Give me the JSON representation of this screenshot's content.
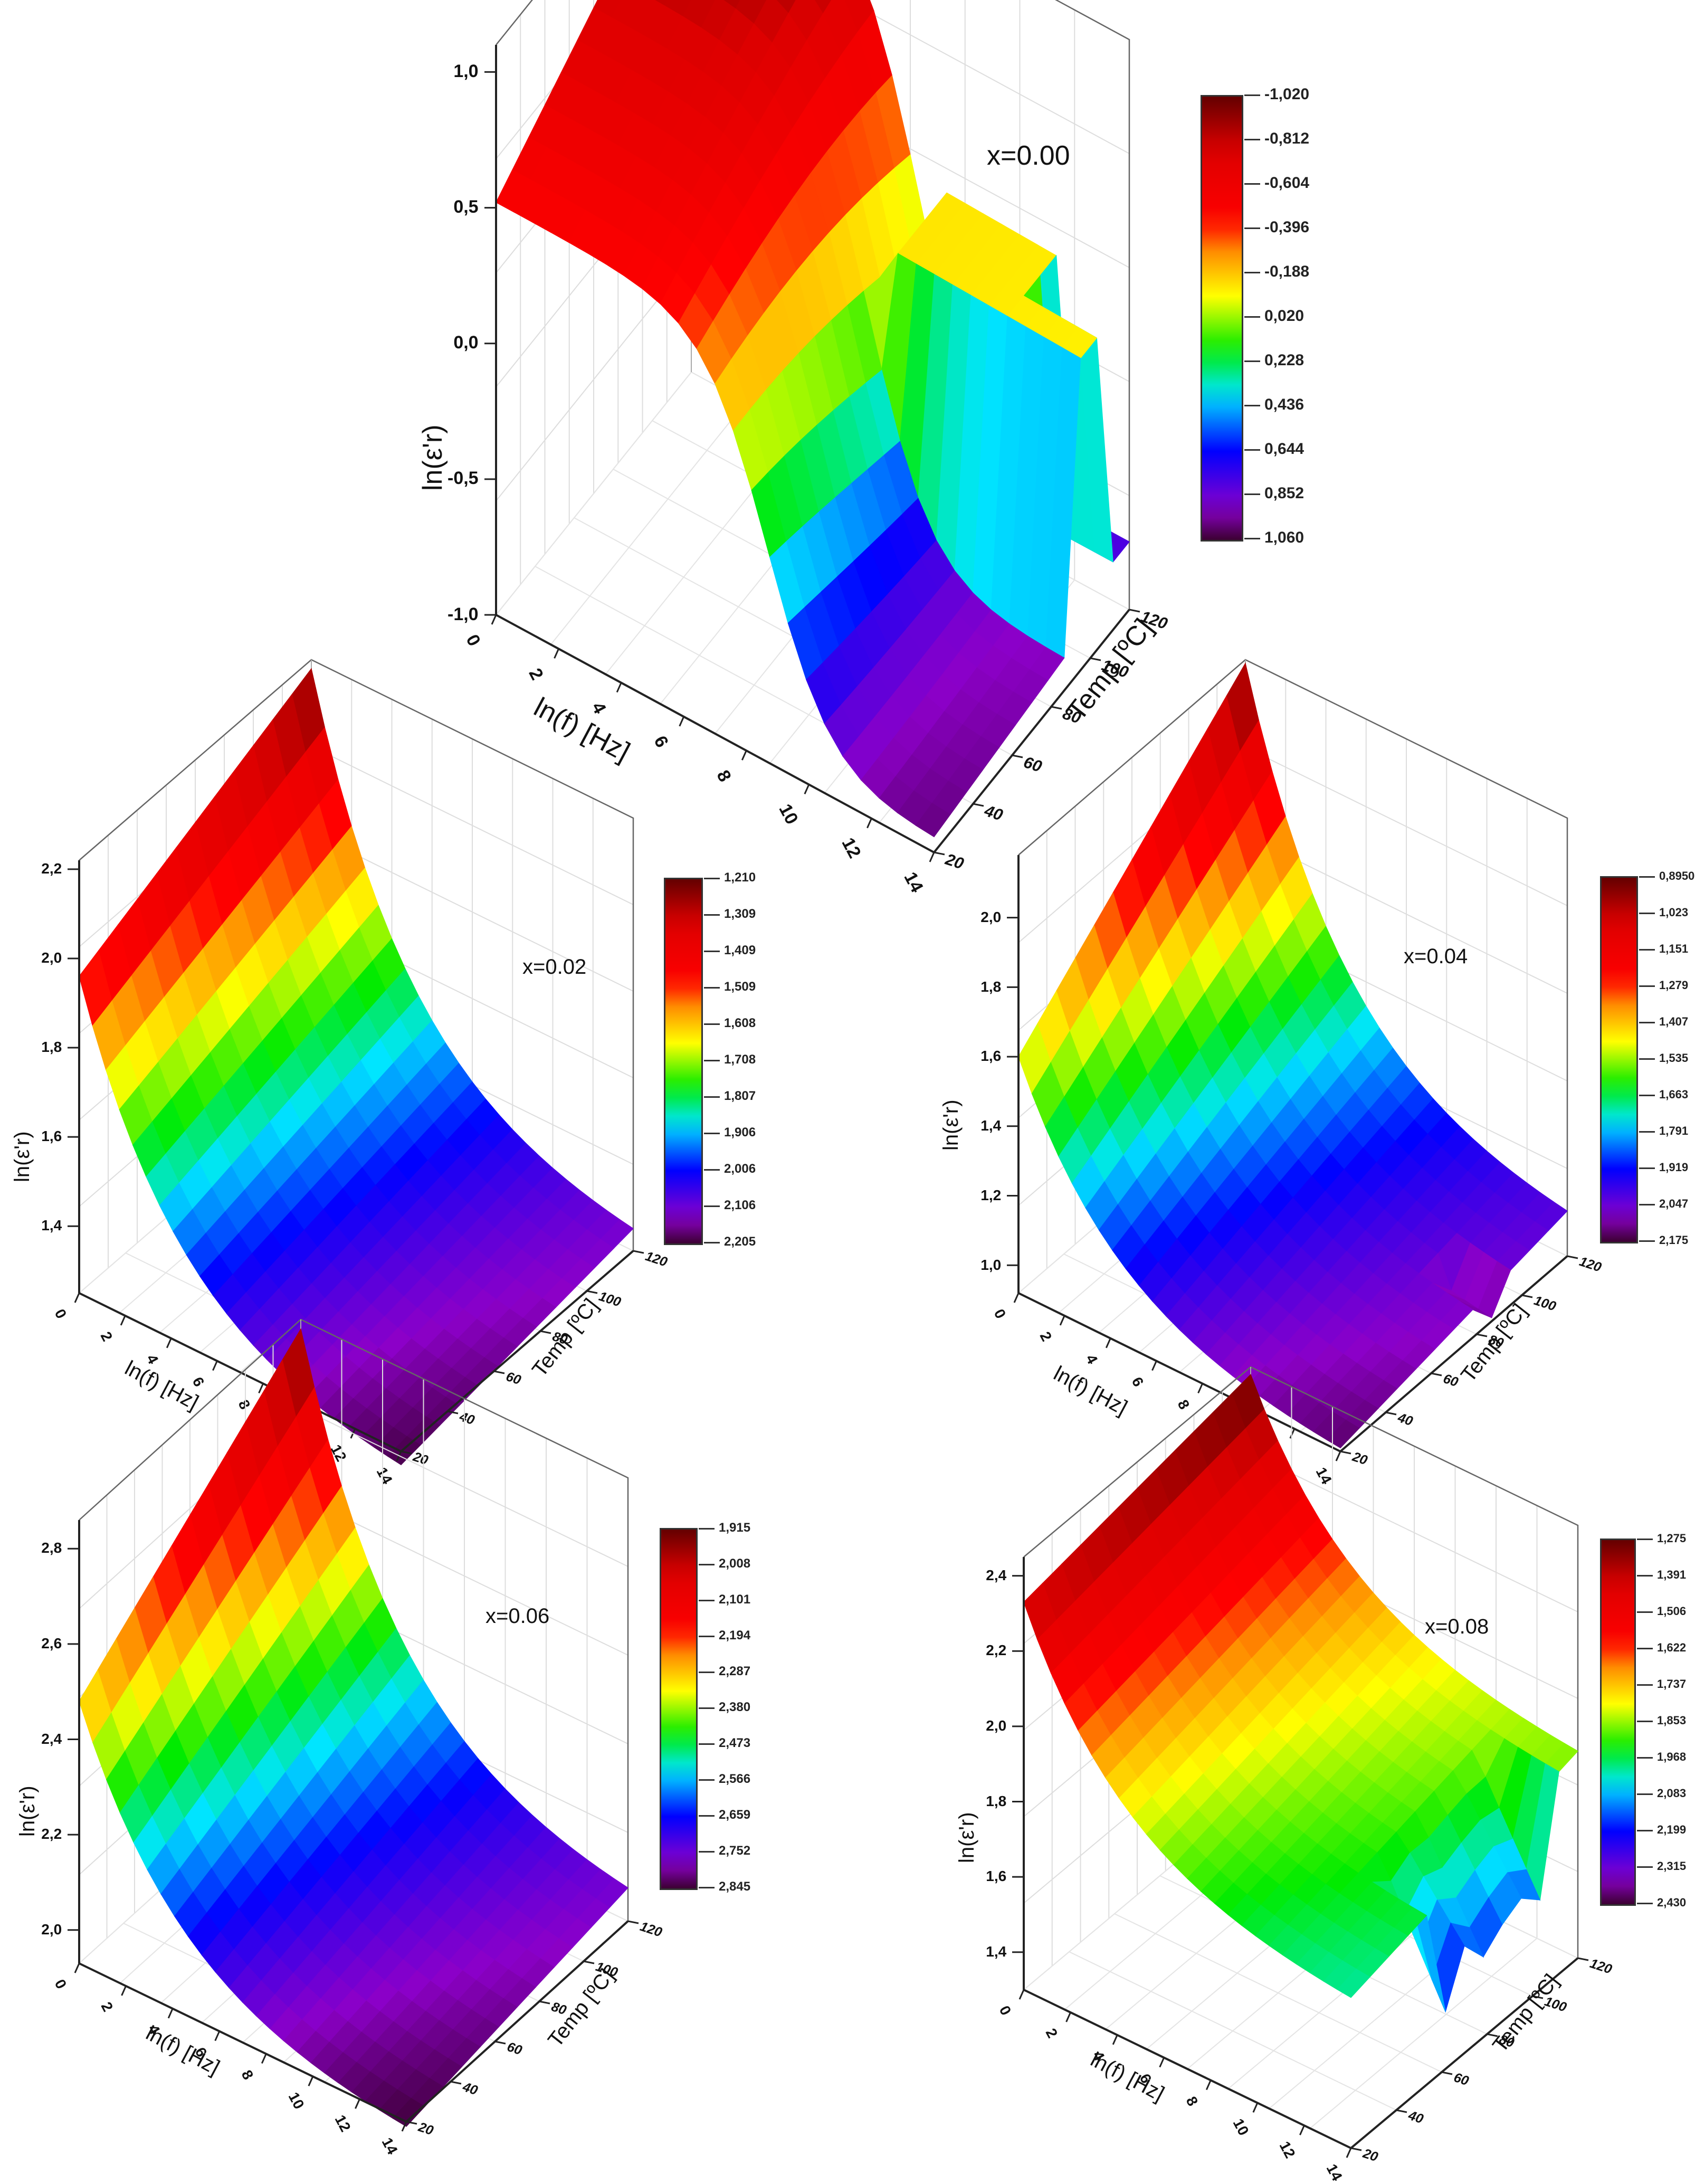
{
  "chart_data": [
    {
      "id": "p0",
      "type": "surface3d",
      "annotation": "x=0.00",
      "xlabel": "ln(f) [Hz]",
      "ylabel": "Temp [ºC]",
      "zlabel": "ln(ε'r)",
      "x_ticks": [
        "0",
        "2",
        "4",
        "6",
        "8",
        "10",
        "12",
        "14"
      ],
      "y_ticks": [
        "20",
        "40",
        "60",
        "80",
        "100",
        "120"
      ],
      "z_ticks": [
        "-1,0",
        "-0,5",
        "0,0",
        "0,5",
        "1,0"
      ],
      "zlim": [
        -1.0,
        1.1
      ],
      "colorbar_ticks": [
        "-1,020",
        "-0,812",
        "-0,604",
        "-0,396",
        "-0,188",
        "0,020",
        "0,228",
        "0,436",
        "0,644",
        "0,852",
        "1,060"
      ],
      "colormap_top_to_bottom": [
        "#1a0010",
        "#8a00c8",
        "#0000ff",
        "#00e5ff",
        "#00ee00",
        "#ffff00",
        "#ff8c00",
        "#ff0000",
        "#ff0000",
        "#b00000",
        "#5a0000"
      ],
      "corner_values": {
        "f0_T20": 0.52,
        "f0_T120": 1.06,
        "f14_T20": -0.95,
        "f14_T120": -0.85
      },
      "notes": "Surface drops sharply from ~0.3 to ~-0.95 near ln(f)≈8-9 at low temperatures; plateau ~0.2 at high T, dip near T≈110"
    },
    {
      "id": "p1",
      "type": "surface3d",
      "annotation": "x=0.02",
      "xlabel": "ln(f) [Hz]",
      "ylabel": "Temp [ºC]",
      "zlabel": "ln(ε'r)",
      "x_ticks": [
        "0",
        "2",
        "4",
        "6",
        "8",
        "10",
        "12",
        "14"
      ],
      "y_ticks": [
        "20",
        "40",
        "60",
        "80",
        "100",
        "120"
      ],
      "z_ticks": [
        "1,4",
        "1,6",
        "1,8",
        "2,0",
        "2,2"
      ],
      "zlim": [
        1.25,
        2.22
      ],
      "colorbar_ticks": [
        "1,210",
        "1,309",
        "1,409",
        "1,509",
        "1,608",
        "1,708",
        "1,807",
        "1,906",
        "2,006",
        "2,106",
        "2,205"
      ],
      "colormap_top_to_bottom": [
        "#1a0010",
        "#8a00c8",
        "#0000ff",
        "#00e5ff",
        "#00ee00",
        "#ffff00",
        "#ff8c00",
        "#ff0000",
        "#ff0000",
        "#b00000",
        "#5a0000"
      ],
      "corner_values": {
        "f0_T20": 1.96,
        "f0_T120": 2.2,
        "f14_T20": 1.22,
        "f14_T120": 1.3
      }
    },
    {
      "id": "p2",
      "type": "surface3d",
      "annotation": "x=0.04",
      "xlabel": "ln(f) [Hz]",
      "ylabel": "Temp [ºC]",
      "zlabel": "ln(ε'r)",
      "x_ticks": [
        "0",
        "2",
        "4",
        "6",
        "8",
        "10",
        "12",
        "14"
      ],
      "y_ticks": [
        "20",
        "40",
        "60",
        "80",
        "100",
        "120"
      ],
      "z_ticks": [
        "1,0",
        "1,2",
        "1,4",
        "1,6",
        "1,8",
        "2,0"
      ],
      "zlim": [
        0.92,
        2.18
      ],
      "colorbar_ticks": [
        "0,8950",
        "1,023",
        "1,151",
        "1,279",
        "1,407",
        "1,535",
        "1,663",
        "1,791",
        "1,919",
        "2,047",
        "2,175"
      ],
      "colormap_top_to_bottom": [
        "#1a0010",
        "#8a00c8",
        "#0000ff",
        "#00e5ff",
        "#00ee00",
        "#ffff00",
        "#ff8c00",
        "#ff0000",
        "#ff0000",
        "#b00000",
        "#5a0000"
      ],
      "corner_values": {
        "f0_T20": 1.6,
        "f0_T120": 2.17,
        "f14_T20": 0.93,
        "f14_T120": 1.05
      }
    },
    {
      "id": "p3",
      "type": "surface3d",
      "annotation": "x=0.06",
      "xlabel": "ln(f) [Hz]",
      "ylabel": "Temp [ºC]",
      "zlabel": "ln(ε'r)",
      "x_ticks": [
        "0",
        "2",
        "4",
        "6",
        "8",
        "10",
        "12",
        "14"
      ],
      "y_ticks": [
        "20",
        "40",
        "60",
        "80",
        "100",
        "120"
      ],
      "z_ticks": [
        "2,0",
        "2,2",
        "2,4",
        "2,6",
        "2,8"
      ],
      "zlim": [
        1.93,
        2.86
      ],
      "colorbar_ticks": [
        "1,915",
        "2,008",
        "2,101",
        "2,194",
        "2,287",
        "2,380",
        "2,473",
        "2,566",
        "2,659",
        "2,752",
        "2,845"
      ],
      "colormap_top_to_bottom": [
        "#1a0010",
        "#8a00c8",
        "#0000ff",
        "#00e5ff",
        "#00ee00",
        "#ffff00",
        "#ff8c00",
        "#ff0000",
        "#ff0000",
        "#b00000",
        "#5a0000"
      ],
      "corner_values": {
        "f0_T20": 2.48,
        "f0_T120": 2.84,
        "f14_T20": 1.92,
        "f14_T120": 2.0
      }
    },
    {
      "id": "p4",
      "type": "surface3d",
      "annotation": "x=0.08",
      "xlabel": "ln(f) [Hz]",
      "ylabel": "Temp [ºC]",
      "zlabel": "ln(ε'r)",
      "x_ticks": [
        "0",
        "2",
        "4",
        "6",
        "8",
        "10",
        "12",
        "14"
      ],
      "y_ticks": [
        "20",
        "40",
        "60",
        "80",
        "100",
        "120"
      ],
      "z_ticks": [
        "1,4",
        "1,6",
        "1,8",
        "2,0",
        "2,2",
        "2,4"
      ],
      "zlim": [
        1.3,
        2.45
      ],
      "colorbar_ticks": [
        "1,275",
        "1,391",
        "1,506",
        "1,622",
        "1,737",
        "1,853",
        "1,968",
        "2,083",
        "2,199",
        "2,315",
        "2,430"
      ],
      "colormap_top_to_bottom": [
        "#1a0010",
        "#8a00c8",
        "#0000ff",
        "#00e5ff",
        "#00ee00",
        "#ffff00",
        "#ff8c00",
        "#ff0000",
        "#ff0000",
        "#b00000",
        "#5a0000"
      ],
      "corner_values": {
        "f0_T20": 2.33,
        "f0_T120": 2.43,
        "f14_T20": 1.7,
        "f14_T120": 1.85
      },
      "notes": "Spiky dips down to ~1.3 at high ln(f) and temperatures 60-100"
    }
  ]
}
